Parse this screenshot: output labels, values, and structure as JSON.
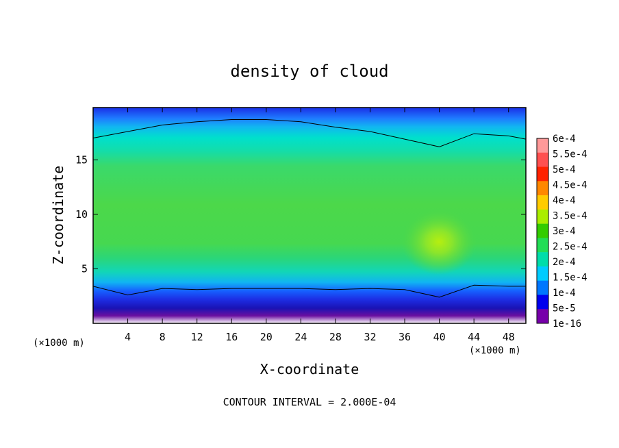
{
  "chart_data": {
    "type": "heatmap",
    "title": "density of cloud",
    "xlabel": "X-coordinate",
    "ylabel": "Z-coordinate",
    "x_unit_left": "(×1000 m)",
    "x_unit_right": "(×1000 m)",
    "footer": "CONTOUR INTERVAL = 2.000E-04",
    "xlim": [
      0,
      50
    ],
    "ylim": [
      0,
      19.8
    ],
    "xticks": [
      4,
      8,
      12,
      16,
      20,
      24,
      28,
      32,
      36,
      40,
      44,
      48
    ],
    "yticks": [
      5,
      10,
      15
    ],
    "colorbar": {
      "labels": [
        "6e-4",
        "5.5e-4",
        "5e-4",
        "4.5e-4",
        "4e-4",
        "3.5e-4",
        "3e-4",
        "2.5e-4",
        "2e-4",
        "1.5e-4",
        "1e-4",
        "5e-5",
        "1e-16"
      ],
      "colors": [
        "#ff9999",
        "#ff5050",
        "#ff2200",
        "#ff8800",
        "#ffcc00",
        "#aaee00",
        "#33cc00",
        "#22dd55",
        "#00ddaa",
        "#00ccff",
        "#0077ff",
        "#0000ee",
        "#7700aa"
      ]
    },
    "profile_x": [
      0,
      4,
      8,
      12,
      16,
      20,
      24,
      28,
      32,
      36,
      40,
      44,
      48,
      50
    ],
    "upper_contour_z": [
      17.0,
      17.6,
      18.2,
      18.5,
      18.7,
      18.7,
      18.5,
      18.0,
      17.6,
      16.9,
      16.2,
      17.4,
      17.2,
      16.9
    ],
    "lower_contour_z": [
      3.4,
      2.6,
      3.2,
      3.1,
      3.2,
      3.2,
      3.2,
      3.1,
      3.2,
      3.1,
      2.4,
      3.5,
      3.4,
      3.4
    ],
    "local_max": {
      "x": 40,
      "z": 7.5,
      "value": 0.0004
    }
  }
}
